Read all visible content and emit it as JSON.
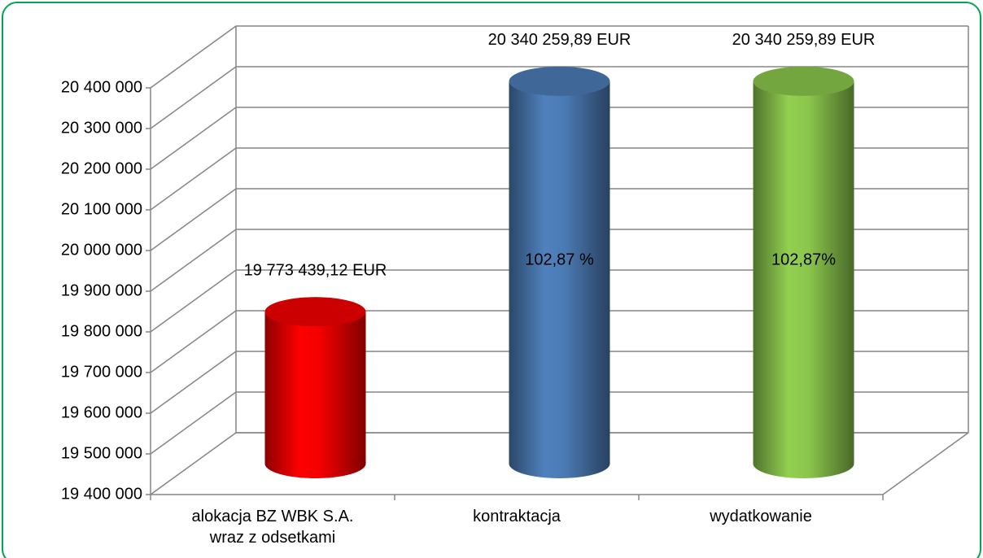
{
  "chart_data": {
    "type": "cylinder-bar",
    "categories": [
      "alokacja BZ WBK S.A. wraz z odsetkami",
      "kontraktacja",
      "wydatkowanie"
    ],
    "values": [
      19773439.12,
      20340259.89,
      20340259.89
    ],
    "value_labels": [
      "19 773 439,12 EUR",
      "20 340 259,89 EUR",
      "20 340 259,89 EUR"
    ],
    "percent_labels": [
      null,
      "102,87 %",
      "102,87%"
    ],
    "colors": [
      "#ff0000",
      "#4f81bd",
      "#92d050"
    ],
    "ylim": [
      19400000,
      20400000
    ],
    "yticks": [
      {
        "value": 19400000,
        "label": "19 400 000"
      },
      {
        "value": 19500000,
        "label": "19 500 000"
      },
      {
        "value": 19600000,
        "label": "19 600 000"
      },
      {
        "value": 19700000,
        "label": "19 700 000"
      },
      {
        "value": 19800000,
        "label": "19 800 000"
      },
      {
        "value": 19900000,
        "label": "19 900 000"
      },
      {
        "value": 20000000,
        "label": "20 000 000"
      },
      {
        "value": 20100000,
        "label": "20 100 000"
      },
      {
        "value": 20200000,
        "label": "20 200 000"
      },
      {
        "value": 20300000,
        "label": "20 300 000"
      },
      {
        "value": 20400000,
        "label": "20 400 000"
      }
    ],
    "grid": true
  }
}
